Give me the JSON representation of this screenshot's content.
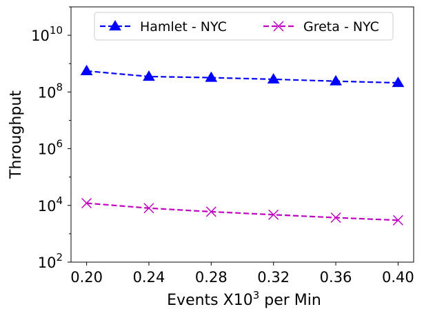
{
  "chart_data": {
    "type": "line",
    "xlabel": {
      "main": "Events X10",
      "sup": "3",
      "rest": " per Min"
    },
    "ylabel": "Throughput",
    "y_scale": "log",
    "ylim": [
      100,
      100000000000
    ],
    "y_ticks": [
      {
        "base": "10",
        "exp": "2",
        "value": 100
      },
      {
        "base": "10",
        "exp": "4",
        "value": 10000
      },
      {
        "base": "10",
        "exp": "6",
        "value": 1000000
      },
      {
        "base": "10",
        "exp": "8",
        "value": 100000000
      },
      {
        "base": "10",
        "exp": "10",
        "value": 10000000000
      }
    ],
    "xlim": [
      0.19,
      0.41
    ],
    "x_ticks": [
      "0.20",
      "0.24",
      "0.28",
      "0.32",
      "0.36",
      "0.40"
    ],
    "x": [
      0.2,
      0.24,
      0.28,
      0.32,
      0.36,
      0.4
    ],
    "grid": false,
    "legend_placement": "top-center",
    "series": [
      {
        "name": "Hamlet - NYC",
        "color": "#0000ff",
        "marker": "triangle",
        "linestyle": "dashed",
        "values": [
          550000000,
          350000000,
          320000000,
          280000000,
          240000000,
          210000000
        ]
      },
      {
        "name": "Greta - NYC",
        "color": "#c000c0",
        "marker": "x",
        "linestyle": "dashed",
        "values": [
          12000,
          8000,
          6000,
          4700,
          3700,
          3000
        ]
      }
    ]
  }
}
